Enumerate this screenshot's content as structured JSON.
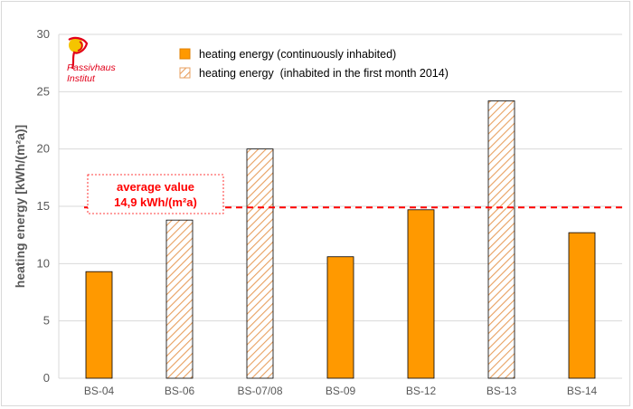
{
  "chart_data": {
    "type": "bar",
    "ylabel": "heating energy [kWh/(m²a)]",
    "ylim": [
      0,
      30
    ],
    "yticks": [
      0,
      5,
      10,
      15,
      20,
      25,
      30
    ],
    "grid": true,
    "categories": [
      "BS-04",
      "BS-06",
      "BS-07/08",
      "BS-09",
      "BS-12",
      "BS-13",
      "BS-14"
    ],
    "values": [
      9.3,
      13.8,
      20.0,
      10.6,
      14.7,
      24.2,
      12.7
    ],
    "series_type": [
      "continuous",
      "partial",
      "partial",
      "continuous",
      "continuous",
      "partial",
      "continuous"
    ],
    "legend": [
      {
        "label": "heating energy (continuously inhabited)",
        "style": "solid"
      },
      {
        "label": "heating energy  (inhabited in the first month 2014)",
        "style": "hatched"
      }
    ],
    "legend_position": "top",
    "average": {
      "value": 14.9,
      "line1": "average value",
      "line2": "14,9 kWh/(m²a)"
    },
    "colors": {
      "bar": "#ff9900",
      "bar_edge": "#000000",
      "hatch": "#e8a060",
      "average_line": "#ff0000",
      "grid": "#d9d9d9"
    }
  },
  "logo": {
    "line1": "Passivhaus",
    "line2": "Institut"
  }
}
